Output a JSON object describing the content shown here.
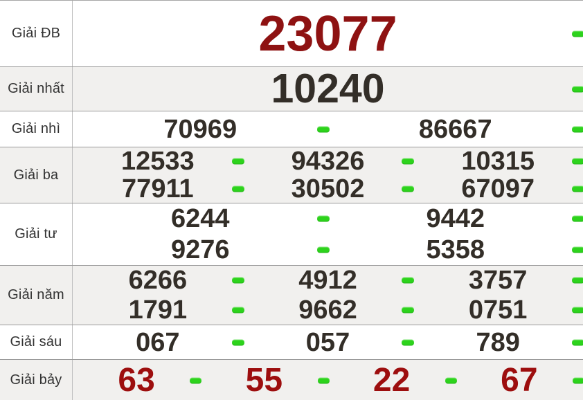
{
  "table": {
    "name": "lottery-results",
    "rows": [
      {
        "key": "db",
        "label": "Giải ĐB",
        "style": "db",
        "striped": false,
        "lines": [
          [
            "23077"
          ]
        ]
      },
      {
        "key": "nhat",
        "label": "Giải nhất",
        "style": "nhat",
        "striped": true,
        "lines": [
          [
            "10240"
          ]
        ]
      },
      {
        "key": "nhi",
        "label": "Giải nhì",
        "style": "norm",
        "striped": false,
        "lines": [
          [
            "70969",
            "86667"
          ]
        ]
      },
      {
        "key": "ba",
        "label": "Giải ba",
        "style": "norm",
        "striped": true,
        "lines": [
          [
            "12533",
            "94326",
            "10315"
          ],
          [
            "77911",
            "30502",
            "67097"
          ]
        ]
      },
      {
        "key": "tu",
        "label": "Giải tư",
        "style": "norm",
        "striped": false,
        "lines": [
          [
            "6244",
            "9442"
          ],
          [
            "9276",
            "5358"
          ]
        ]
      },
      {
        "key": "nam",
        "label": "Giải năm",
        "style": "norm",
        "striped": true,
        "lines": [
          [
            "6266",
            "4912",
            "3757"
          ],
          [
            "1791",
            "9662",
            "0751"
          ]
        ]
      },
      {
        "key": "sau",
        "label": "Giải sáu",
        "style": "norm",
        "striped": false,
        "lines": [
          [
            "067",
            "057",
            "789"
          ]
        ]
      },
      {
        "key": "bay",
        "label": "Giải bảy",
        "style": "bay",
        "striped": true,
        "lines": [
          [
            "63",
            "55",
            "22",
            "67"
          ]
        ]
      }
    ],
    "separator_icon": "green-dash-icon",
    "colors": {
      "prize_special_red": "#8e1212",
      "prize_seven_red": "#9d0e0e",
      "number_color": "#332e28",
      "dash_green": "#2dd31c",
      "row_bg": "#ffffff",
      "row_alt_bg": "#f1f0ee",
      "border": "#999999"
    }
  }
}
